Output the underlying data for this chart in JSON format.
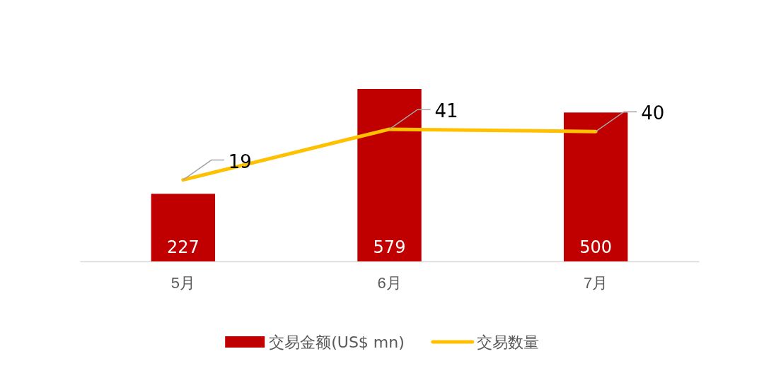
{
  "chart_data": {
    "type": "bar",
    "categories": [
      "5月",
      "6月",
      "7月"
    ],
    "series": [
      {
        "name": "交易金额(US$ mn)",
        "color": "#c00000",
        "values": [
          227,
          579,
          500
        ]
      },
      {
        "name": "交易数量",
        "type": "line",
        "axis": "y2",
        "color": "#ffc000",
        "values": [
          19,
          41,
          40
        ]
      }
    ],
    "data_labels": true,
    "legend": "bottom",
    "grid": false,
    "marker": "none"
  }
}
